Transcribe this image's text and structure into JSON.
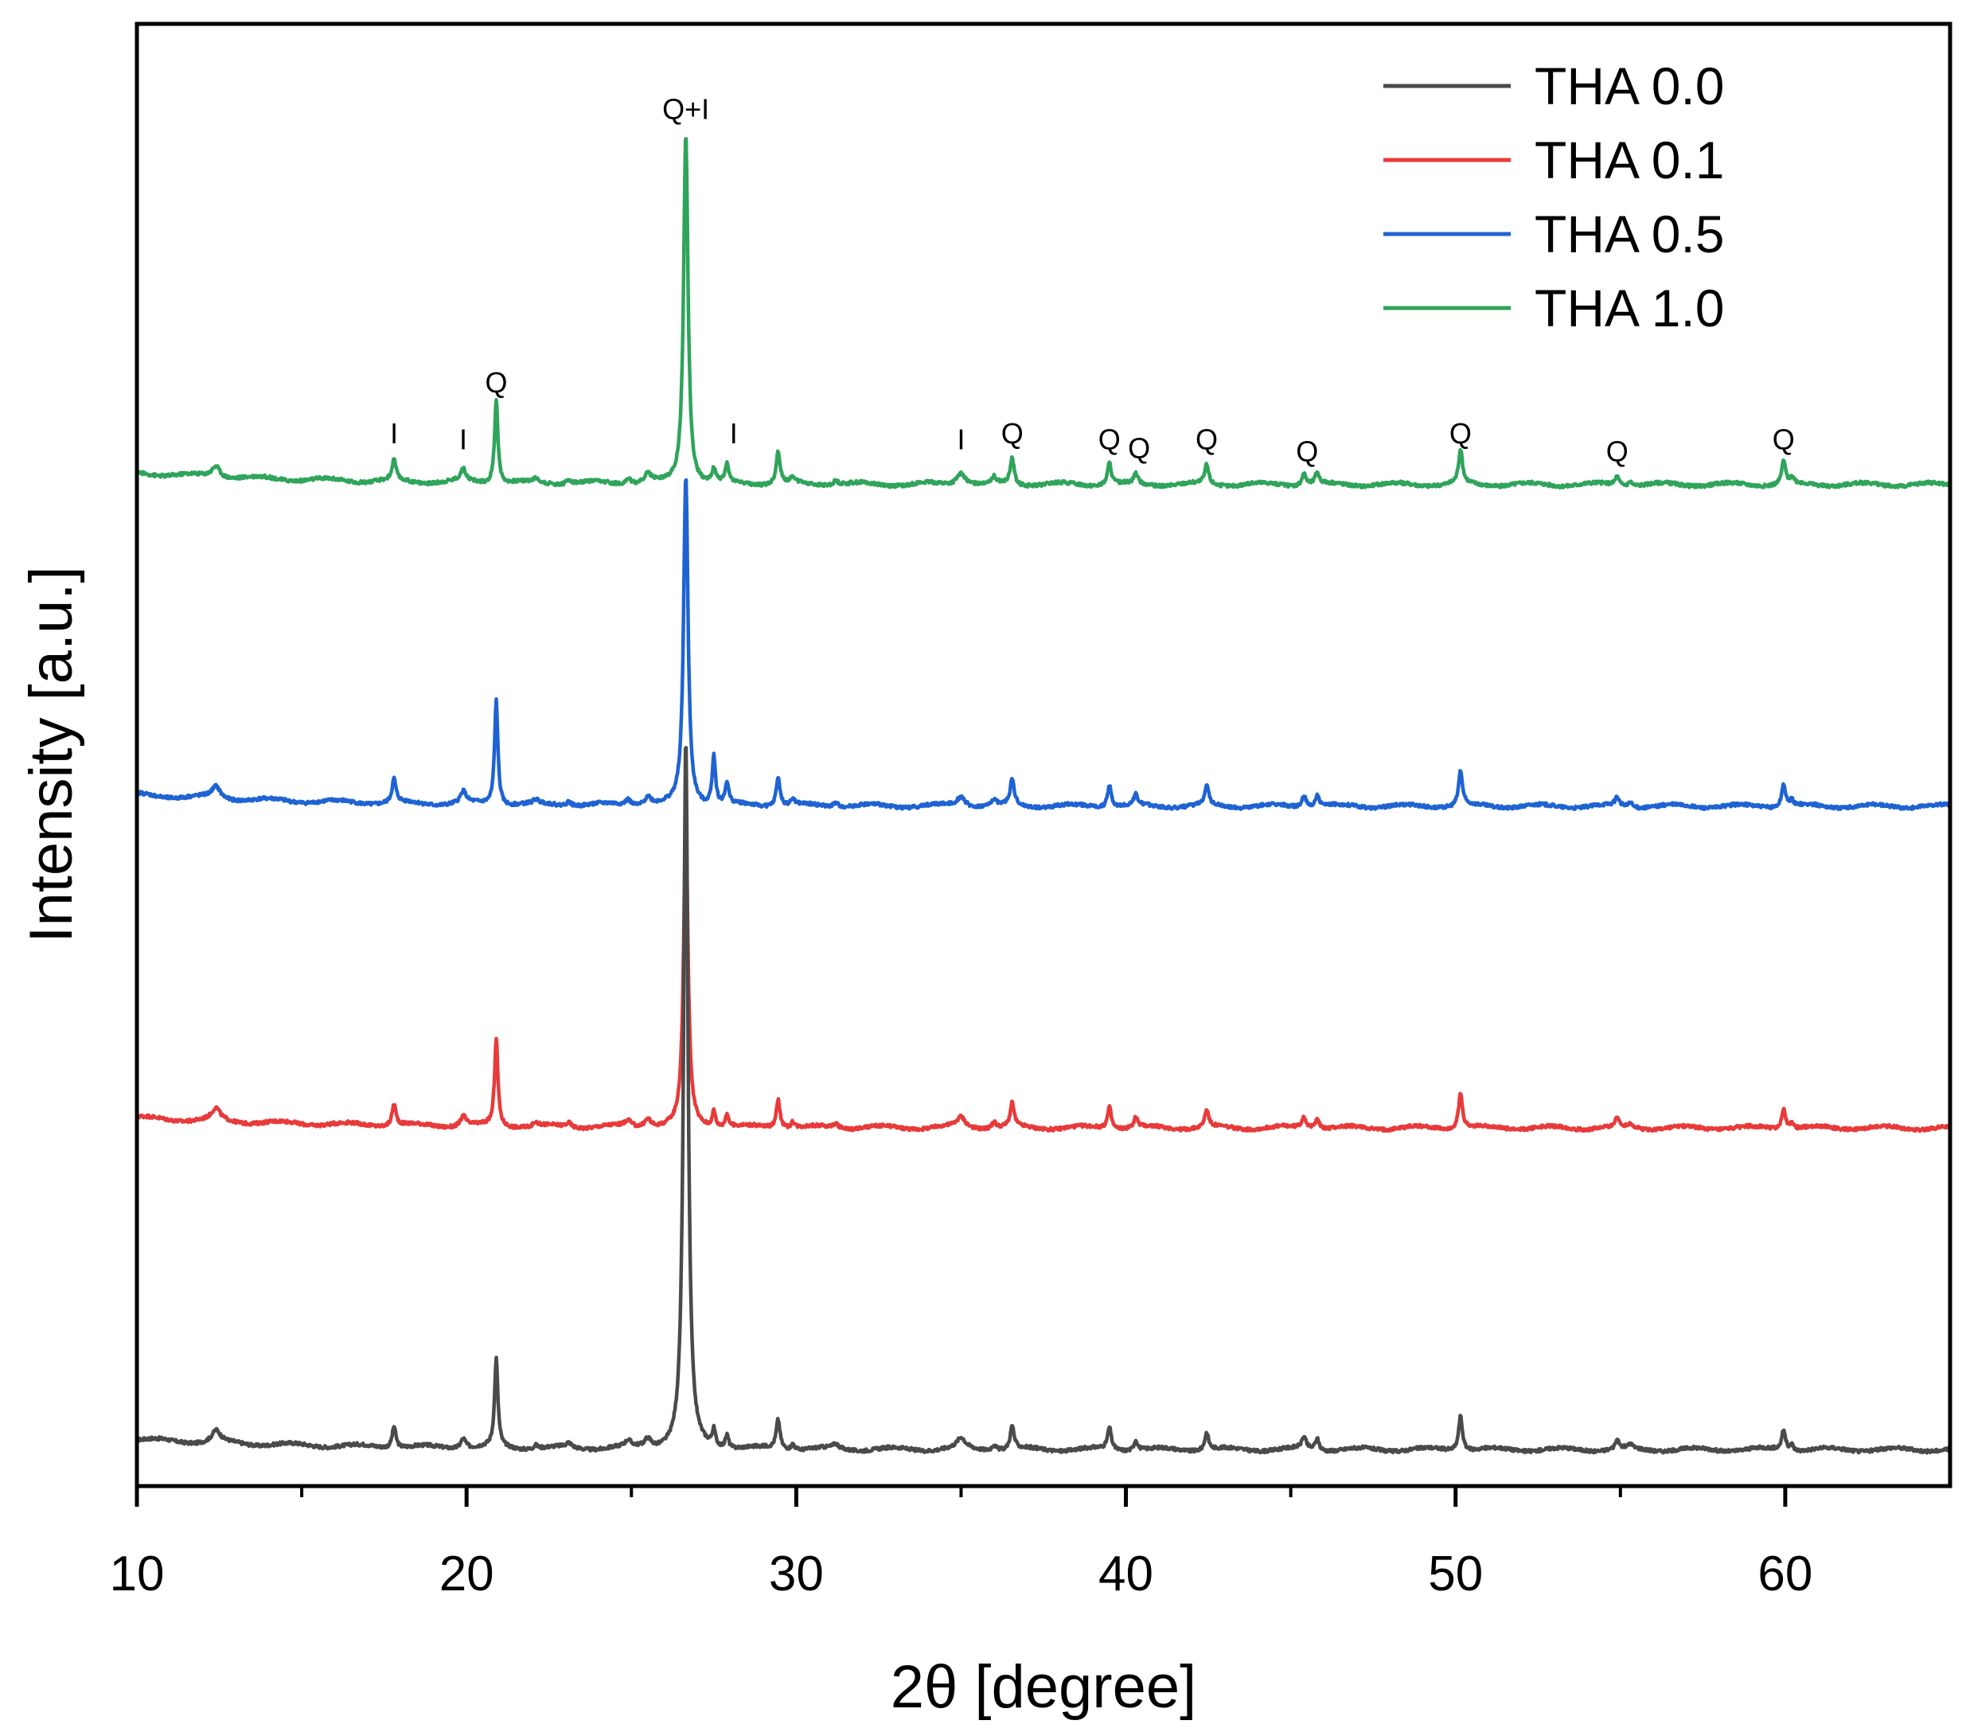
{
  "chart_data": {
    "type": "line",
    "title": "",
    "xlabel": "2θ [degree]",
    "ylabel": "Intensity [a.u.]",
    "xlim": [
      10,
      65
    ],
    "ylim": [
      0,
      100
    ],
    "x_ticks": [
      10,
      20,
      30,
      40,
      50,
      60
    ],
    "x_tick_labels": [
      "10",
      "20",
      "30",
      "40",
      "50",
      "60"
    ],
    "y_ticks_shown": false,
    "legend_position": "top-right",
    "series": [
      {
        "name": "THA 0.0",
        "color": "#4a4a4a",
        "baseline": 2.5,
        "start": 3.2,
        "peaks": [
          [
            12.4,
            0.8,
            0.15
          ],
          [
            17.8,
            1.5,
            0.07
          ],
          [
            19.9,
            0.7,
            0.1
          ],
          [
            20.9,
            6.0,
            0.06
          ],
          [
            22.1,
            0.25,
            0.08
          ],
          [
            23.1,
            0.3,
            0.1
          ],
          [
            24.9,
            0.4,
            0.1
          ],
          [
            25.5,
            0.6,
            0.12
          ],
          [
            26.65,
            48.5,
            0.08
          ],
          [
            27.5,
            1.1,
            0.06
          ],
          [
            27.9,
            0.9,
            0.06
          ],
          [
            29.45,
            2.0,
            0.07
          ],
          [
            29.9,
            0.4,
            0.07
          ],
          [
            31.2,
            0.3,
            0.1
          ],
          [
            35.0,
            0.7,
            0.15
          ],
          [
            36.0,
            0.4,
            0.08
          ],
          [
            36.55,
            1.6,
            0.07
          ],
          [
            39.5,
            1.5,
            0.07
          ],
          [
            40.3,
            0.7,
            0.07
          ],
          [
            42.45,
            1.2,
            0.07
          ],
          [
            45.4,
            0.8,
            0.08
          ],
          [
            45.8,
            0.8,
            0.07
          ],
          [
            50.15,
            2.4,
            0.07
          ],
          [
            54.9,
            0.6,
            0.07
          ],
          [
            55.3,
            0.3,
            0.07
          ],
          [
            59.95,
            1.4,
            0.07
          ],
          [
            60.2,
            0.4,
            0.06
          ]
        ]
      },
      {
        "name": "THA 0.1",
        "color": "#e83a3a",
        "baseline": 24.5,
        "start": 25.2,
        "peaks": [
          [
            12.4,
            0.8,
            0.15
          ],
          [
            17.8,
            1.5,
            0.07
          ],
          [
            19.9,
            0.7,
            0.1
          ],
          [
            20.9,
            6.0,
            0.06
          ],
          [
            22.1,
            0.25,
            0.08
          ],
          [
            23.1,
            0.3,
            0.1
          ],
          [
            24.9,
            0.4,
            0.1
          ],
          [
            25.5,
            0.6,
            0.12
          ],
          [
            26.65,
            21.0,
            0.08
          ],
          [
            27.5,
            1.1,
            0.06
          ],
          [
            27.9,
            0.9,
            0.06
          ],
          [
            29.45,
            2.0,
            0.07
          ],
          [
            29.9,
            0.4,
            0.07
          ],
          [
            31.2,
            0.3,
            0.1
          ],
          [
            35.0,
            0.7,
            0.15
          ],
          [
            36.0,
            0.4,
            0.08
          ],
          [
            36.55,
            1.6,
            0.07
          ],
          [
            39.5,
            1.5,
            0.07
          ],
          [
            40.3,
            0.7,
            0.07
          ],
          [
            42.45,
            1.2,
            0.07
          ],
          [
            45.4,
            0.8,
            0.08
          ],
          [
            45.8,
            0.8,
            0.07
          ],
          [
            50.15,
            2.4,
            0.07
          ],
          [
            54.9,
            0.6,
            0.07
          ],
          [
            55.3,
            0.3,
            0.07
          ],
          [
            59.95,
            1.4,
            0.07
          ],
          [
            60.2,
            0.4,
            0.06
          ]
        ]
      },
      {
        "name": "THA 0.5",
        "color": "#1f63d3",
        "baseline": 46.5,
        "start": 47.3,
        "peaks": [
          [
            12.4,
            0.8,
            0.15
          ],
          [
            17.8,
            1.6,
            0.07
          ],
          [
            19.9,
            0.8,
            0.1
          ],
          [
            20.9,
            7.2,
            0.06
          ],
          [
            22.1,
            0.25,
            0.08
          ],
          [
            23.1,
            0.3,
            0.1
          ],
          [
            24.9,
            0.4,
            0.1
          ],
          [
            25.5,
            0.6,
            0.12
          ],
          [
            26.65,
            22.5,
            0.08
          ],
          [
            27.5,
            3.4,
            0.06
          ],
          [
            27.9,
            1.5,
            0.06
          ],
          [
            29.45,
            2.0,
            0.07
          ],
          [
            29.9,
            0.4,
            0.07
          ],
          [
            31.2,
            0.3,
            0.1
          ],
          [
            35.0,
            0.7,
            0.15
          ],
          [
            36.0,
            0.4,
            0.08
          ],
          [
            36.55,
            1.8,
            0.07
          ],
          [
            39.5,
            1.5,
            0.07
          ],
          [
            40.3,
            0.7,
            0.07
          ],
          [
            42.45,
            1.4,
            0.07
          ],
          [
            45.4,
            0.8,
            0.08
          ],
          [
            45.8,
            0.8,
            0.07
          ],
          [
            50.15,
            2.4,
            0.07
          ],
          [
            54.9,
            0.6,
            0.07
          ],
          [
            55.3,
            0.3,
            0.07
          ],
          [
            59.95,
            1.6,
            0.07
          ],
          [
            60.2,
            0.4,
            0.06
          ]
        ]
      },
      {
        "name": "THA 1.0",
        "color": "#2fa45a",
        "baseline": 68.5,
        "start": 69.3,
        "peaks": [
          [
            12.4,
            0.8,
            0.15
          ],
          [
            17.8,
            1.4,
            0.07
          ],
          [
            19.9,
            0.8,
            0.1
          ],
          [
            20.9,
            5.8,
            0.06
          ],
          [
            22.1,
            0.25,
            0.08
          ],
          [
            23.1,
            0.3,
            0.1
          ],
          [
            24.9,
            0.4,
            0.1
          ],
          [
            25.5,
            0.6,
            0.12
          ],
          [
            26.65,
            24.0,
            0.08
          ],
          [
            27.5,
            0.9,
            0.06
          ],
          [
            27.9,
            1.2,
            0.06
          ],
          [
            29.45,
            2.2,
            0.07
          ],
          [
            29.9,
            0.4,
            0.07
          ],
          [
            31.2,
            0.3,
            0.1
          ],
          [
            35.0,
            0.9,
            0.15
          ],
          [
            36.0,
            0.4,
            0.08
          ],
          [
            36.55,
            1.8,
            0.07
          ],
          [
            39.5,
            1.5,
            0.07
          ],
          [
            40.3,
            0.7,
            0.07
          ],
          [
            42.45,
            1.3,
            0.07
          ],
          [
            45.4,
            0.8,
            0.08
          ],
          [
            45.8,
            0.8,
            0.07
          ],
          [
            50.15,
            2.3,
            0.07
          ],
          [
            54.9,
            0.6,
            0.07
          ],
          [
            55.3,
            0.3,
            0.07
          ],
          [
            59.95,
            1.6,
            0.07
          ],
          [
            60.2,
            0.4,
            0.06
          ]
        ]
      }
    ],
    "annotations": [
      {
        "text": "Q+I",
        "x": 26.65,
        "y": 93.5
      },
      {
        "text": "I",
        "x": 17.8,
        "y": 71.3
      },
      {
        "text": "I",
        "x": 19.9,
        "y": 70.9
      },
      {
        "text": "Q",
        "x": 20.9,
        "y": 74.8
      },
      {
        "text": "I",
        "x": 28.1,
        "y": 71.3
      },
      {
        "text": "I",
        "x": 35.0,
        "y": 70.9
      },
      {
        "text": "Q",
        "x": 36.55,
        "y": 71.3
      },
      {
        "text": "Q",
        "x": 39.5,
        "y": 70.9
      },
      {
        "text": "Q",
        "x": 40.4,
        "y": 70.3
      },
      {
        "text": "Q",
        "x": 42.45,
        "y": 70.9
      },
      {
        "text": "Q",
        "x": 45.5,
        "y": 70.1
      },
      {
        "text": "Q",
        "x": 50.15,
        "y": 71.3
      },
      {
        "text": "Q",
        "x": 54.9,
        "y": 70.1
      },
      {
        "text": "Q",
        "x": 59.95,
        "y": 70.9
      }
    ]
  }
}
